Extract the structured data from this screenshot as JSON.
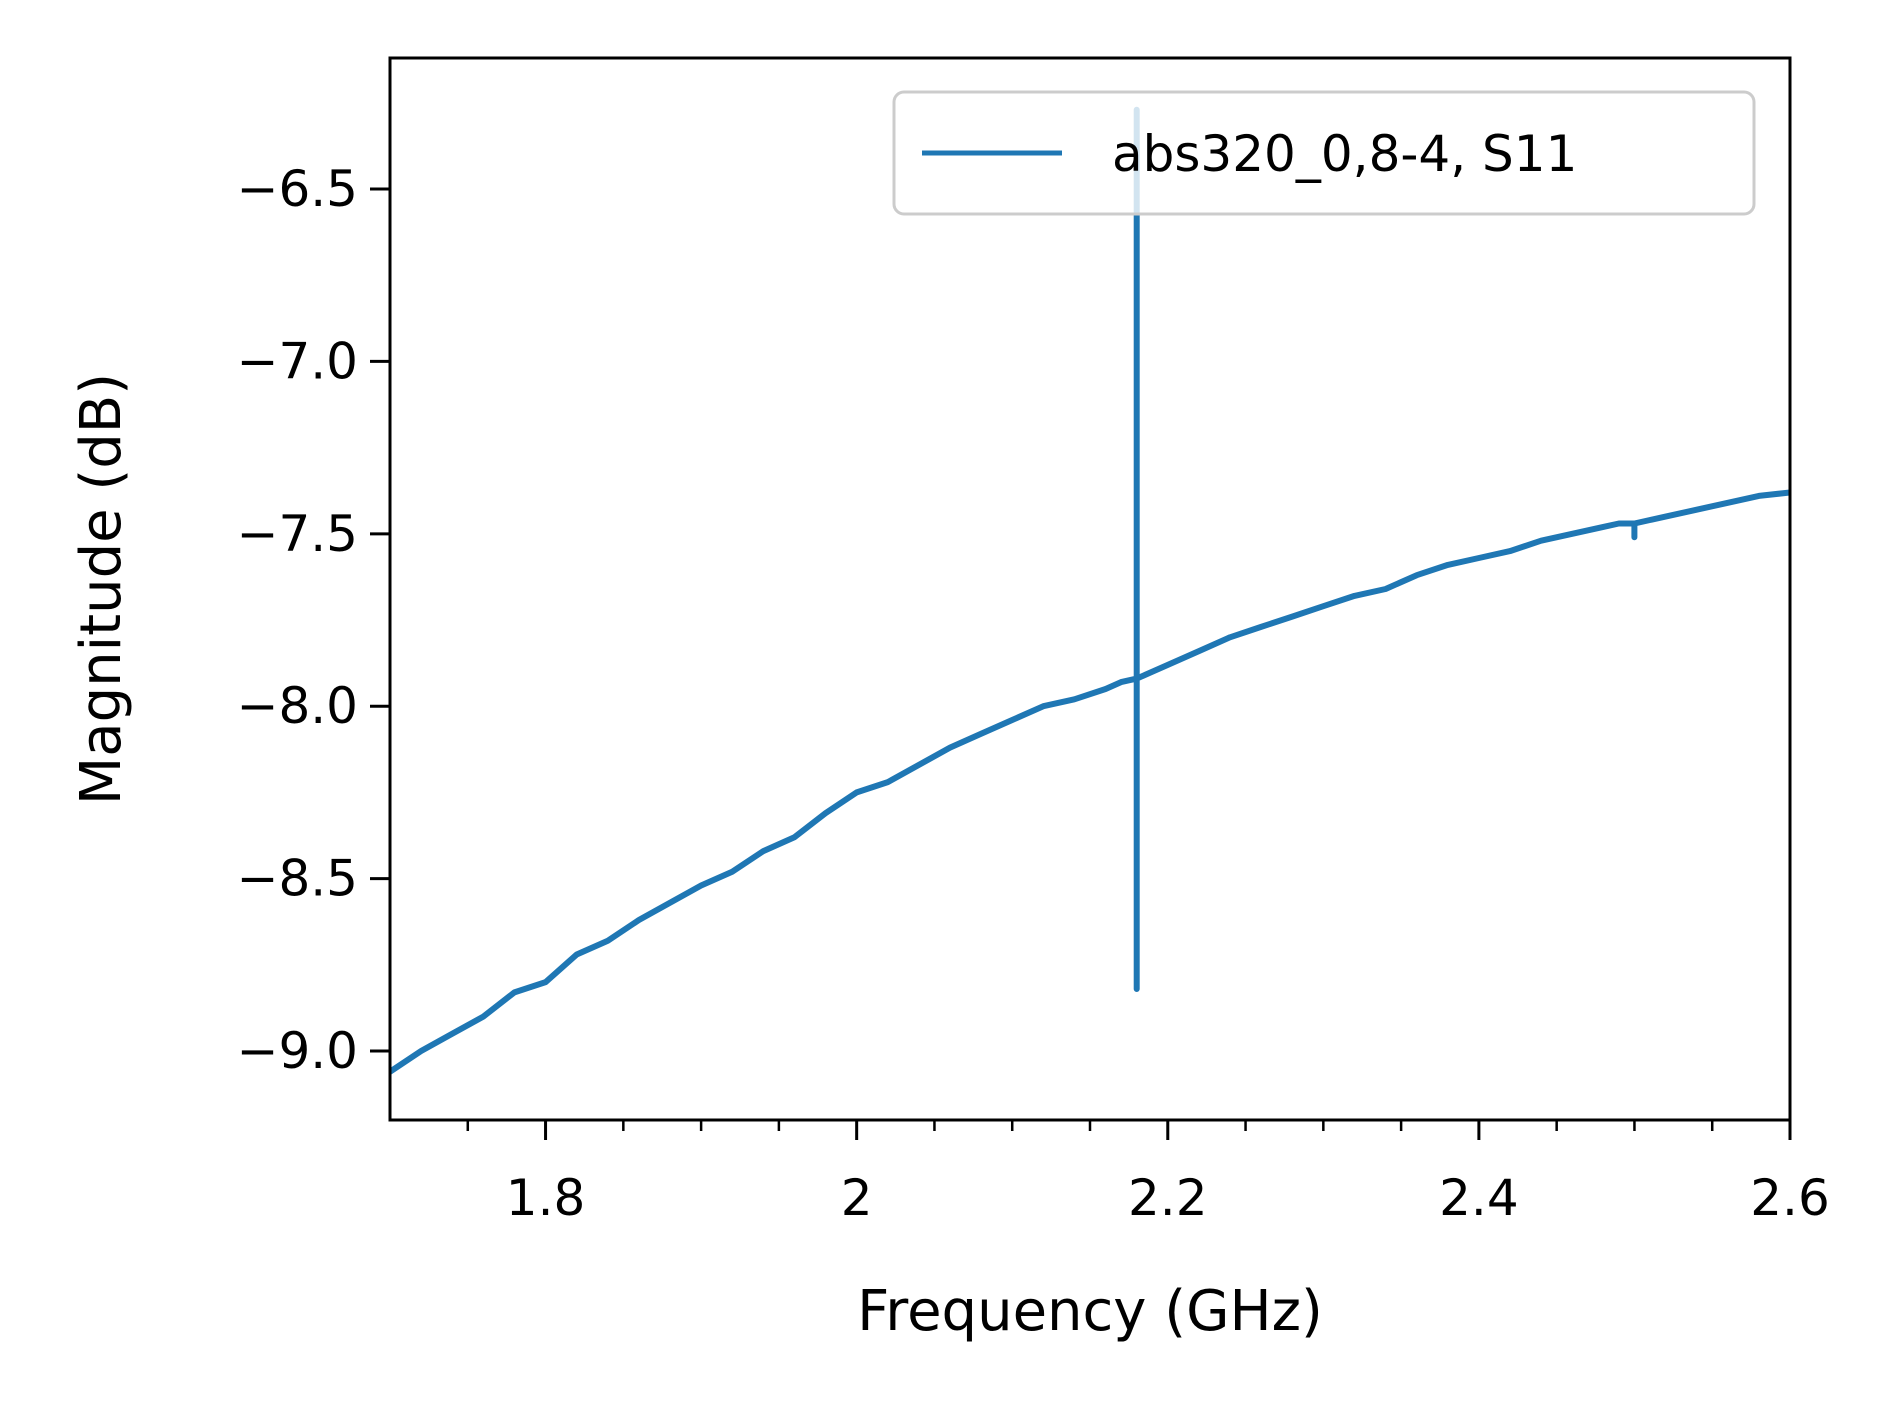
{
  "chart_data": {
    "type": "line",
    "title": "",
    "xlabel": "Frequency (GHz)",
    "ylabel": "Magnitude (dB)",
    "xlim": [
      1.7,
      2.6
    ],
    "ylim": [
      -9.2,
      -6.12
    ],
    "grid": false,
    "legend_position": "top-right",
    "x_ticks": [
      {
        "value": 1.8,
        "label": "1.8"
      },
      {
        "value": 2.0,
        "label": "2"
      },
      {
        "value": 2.2,
        "label": "2.2"
      },
      {
        "value": 2.4,
        "label": "2.4"
      },
      {
        "value": 2.6,
        "label": "2.6"
      }
    ],
    "x_minor_ticks": [
      1.75,
      1.85,
      1.9,
      1.95,
      2.05,
      2.1,
      2.15,
      2.25,
      2.3,
      2.35,
      2.45,
      2.5,
      2.55
    ],
    "y_ticks": [
      {
        "value": -9.0,
        "label": "−9.0"
      },
      {
        "value": -8.5,
        "label": "−8.5"
      },
      {
        "value": -8.0,
        "label": "−8.0"
      },
      {
        "value": -7.5,
        "label": "−7.5"
      },
      {
        "value": -7.0,
        "label": "−7.0"
      },
      {
        "value": -6.5,
        "label": "−6.5"
      }
    ],
    "series": [
      {
        "name": "abs320_0,8-4, S11",
        "color": "#1f77b4",
        "x": [
          1.7,
          1.72,
          1.74,
          1.76,
          1.78,
          1.8,
          1.82,
          1.84,
          1.86,
          1.88,
          1.9,
          1.92,
          1.94,
          1.96,
          1.98,
          2.0,
          2.02,
          2.04,
          2.06,
          2.08,
          2.1,
          2.12,
          2.14,
          2.16,
          2.17,
          2.18,
          2.18,
          2.18,
          2.18,
          2.19,
          2.2,
          2.22,
          2.24,
          2.26,
          2.28,
          2.3,
          2.32,
          2.34,
          2.36,
          2.38,
          2.4,
          2.42,
          2.44,
          2.46,
          2.48,
          2.49,
          2.5,
          2.5,
          2.5,
          2.51,
          2.52,
          2.54,
          2.56,
          2.58,
          2.6
        ],
        "y": [
          -9.06,
          -9.0,
          -8.95,
          -8.9,
          -8.83,
          -8.8,
          -8.72,
          -8.68,
          -8.62,
          -8.57,
          -8.52,
          -8.48,
          -8.42,
          -8.38,
          -8.31,
          -8.25,
          -8.22,
          -8.17,
          -8.12,
          -8.08,
          -8.04,
          -8.0,
          -7.98,
          -7.95,
          -7.93,
          -7.92,
          -6.27,
          -8.82,
          -7.92,
          -7.9,
          -7.88,
          -7.84,
          -7.8,
          -7.77,
          -7.74,
          -7.71,
          -7.68,
          -7.66,
          -7.62,
          -7.59,
          -7.57,
          -7.55,
          -7.52,
          -7.5,
          -7.48,
          -7.47,
          -7.47,
          -7.51,
          -7.47,
          -7.46,
          -7.45,
          -7.43,
          -7.41,
          -7.39,
          -7.38
        ]
      }
    ]
  }
}
